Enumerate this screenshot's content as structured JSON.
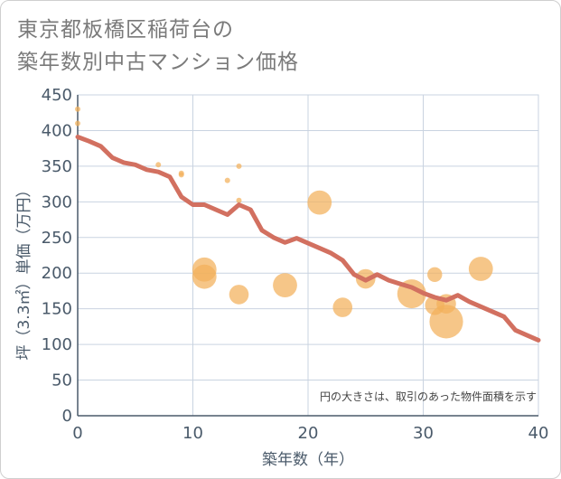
{
  "title_line1": "東京都板橋区稲荷台の",
  "title_line2": "築年数別中古マンション価格",
  "chart_data": {
    "type": "scatter",
    "xlabel": "築年数（年）",
    "ylabel": "坪（3.3㎡）単価（万円）",
    "xlim": [
      0,
      40
    ],
    "ylim": [
      0,
      450
    ],
    "x_ticks": [
      "0",
      "10",
      "20",
      "30",
      "40"
    ],
    "y_ticks": [
      "0",
      "50",
      "100",
      "150",
      "200",
      "250",
      "300",
      "350",
      "400",
      "450"
    ],
    "grid": true,
    "note": "円の大きさは、取引のあった物件面積を示す",
    "colors": {
      "bubble": "#f2b05a",
      "line": "#d27060",
      "grid": "#c9d3e0"
    },
    "bubbles": [
      {
        "x": 0,
        "y": 430,
        "size": 1
      },
      {
        "x": 0,
        "y": 410,
        "size": 1
      },
      {
        "x": 7,
        "y": 352,
        "size": 1
      },
      {
        "x": 9,
        "y": 338,
        "size": 1
      },
      {
        "x": 9,
        "y": 340,
        "size": 1
      },
      {
        "x": 13,
        "y": 330,
        "size": 1
      },
      {
        "x": 14,
        "y": 350,
        "size": 1
      },
      {
        "x": 14,
        "y": 302,
        "size": 1
      },
      {
        "x": 11,
        "y": 205,
        "size": 5
      },
      {
        "x": 11,
        "y": 195,
        "size": 5
      },
      {
        "x": 14,
        "y": 170,
        "size": 4
      },
      {
        "x": 18,
        "y": 183,
        "size": 5
      },
      {
        "x": 21,
        "y": 299,
        "size": 5
      },
      {
        "x": 23,
        "y": 152,
        "size": 4
      },
      {
        "x": 25,
        "y": 192,
        "size": 4
      },
      {
        "x": 29,
        "y": 171,
        "size": 6
      },
      {
        "x": 31,
        "y": 198,
        "size": 3
      },
      {
        "x": 31,
        "y": 155,
        "size": 4
      },
      {
        "x": 32,
        "y": 157,
        "size": 4
      },
      {
        "x": 32,
        "y": 132,
        "size": 7
      },
      {
        "x": 35,
        "y": 206,
        "size": 5
      }
    ],
    "trend": {
      "x": [
        0,
        1,
        2,
        3,
        4,
        5,
        6,
        7,
        8,
        9,
        10,
        11,
        12,
        13,
        14,
        15,
        16,
        17,
        18,
        19,
        20,
        21,
        22,
        23,
        24,
        25,
        26,
        27,
        28,
        29,
        30,
        31,
        32,
        33,
        34,
        35,
        36,
        37,
        38,
        39,
        40
      ],
      "y": [
        391,
        385,
        378,
        362,
        355,
        352,
        345,
        342,
        335,
        307,
        296,
        296,
        289,
        282,
        296,
        289,
        260,
        250,
        243,
        249,
        242,
        235,
        228,
        218,
        198,
        190,
        198,
        190,
        185,
        180,
        172,
        166,
        162,
        169,
        160,
        153,
        146,
        139,
        120,
        113,
        106
      ]
    }
  }
}
